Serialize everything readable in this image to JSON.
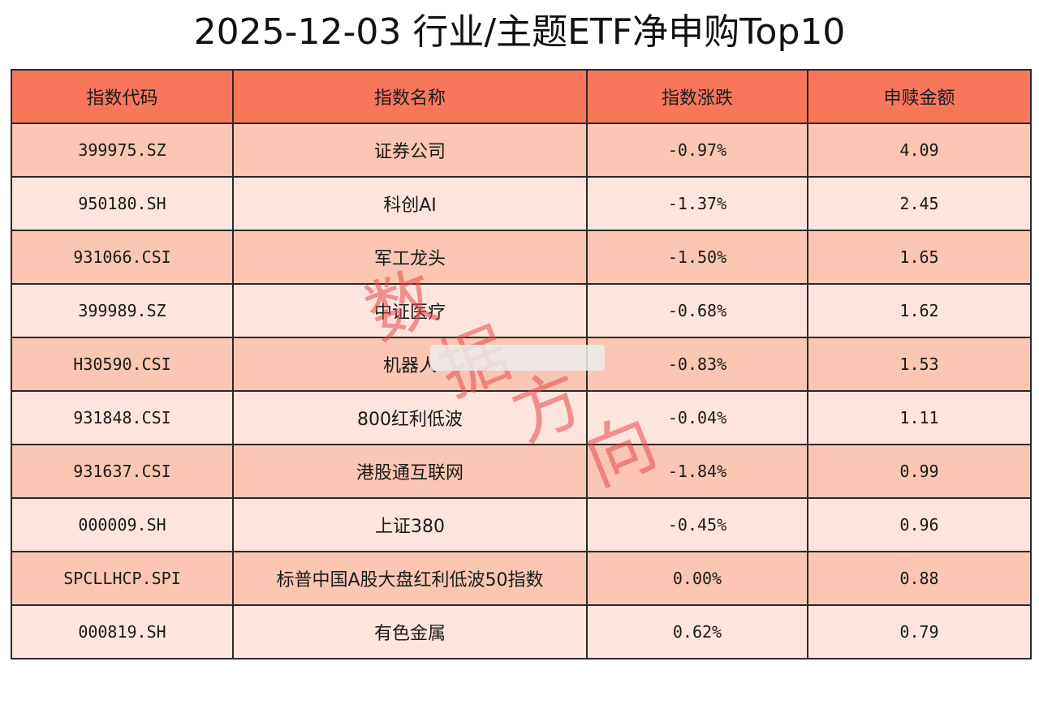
{
  "title": "2025-12-03 行业/主题ETF净申购Top10",
  "columns": [
    "指数代码",
    "指数名称",
    "指数涨跌",
    "申赎金额"
  ],
  "rows": [
    {
      "code": "399975.SZ",
      "name": "证券公司",
      "change": "-0.97%",
      "amount": "4.09"
    },
    {
      "code": "950180.SH",
      "name": "科创AI",
      "change": "-1.37%",
      "amount": "2.45"
    },
    {
      "code": "931066.CSI",
      "name": "军工龙头",
      "change": "-1.50%",
      "amount": "1.65"
    },
    {
      "code": "399989.SZ",
      "name": "中证医疗",
      "change": "-0.68%",
      "amount": "1.62"
    },
    {
      "code": "H30590.CSI",
      "name": "机器人",
      "change": "-0.83%",
      "amount": "1.53"
    },
    {
      "code": "931848.CSI",
      "name": "800红利低波",
      "change": "-0.04%",
      "amount": "1.11"
    },
    {
      "code": "931637.CSI",
      "name": "港股通互联网",
      "change": "-1.84%",
      "amount": "0.99"
    },
    {
      "code": "000009.SH",
      "name": "上证380",
      "change": "-0.45%",
      "amount": "0.96"
    },
    {
      "code": "SPCLLHCP.SPI",
      "name": "标普中国A股大盘红利低波50指数",
      "change": "0.00%",
      "amount": "0.88"
    },
    {
      "code": "000819.SH",
      "name": "有色金属",
      "change": "0.62%",
      "amount": "0.79"
    }
  ],
  "watermark": [
    "数",
    "据",
    "方",
    "向"
  ],
  "colors": {
    "header": "#f8775a",
    "row_odd": "#fbc6b3",
    "row_even": "#fde5dd",
    "watermark": "#e84848"
  }
}
